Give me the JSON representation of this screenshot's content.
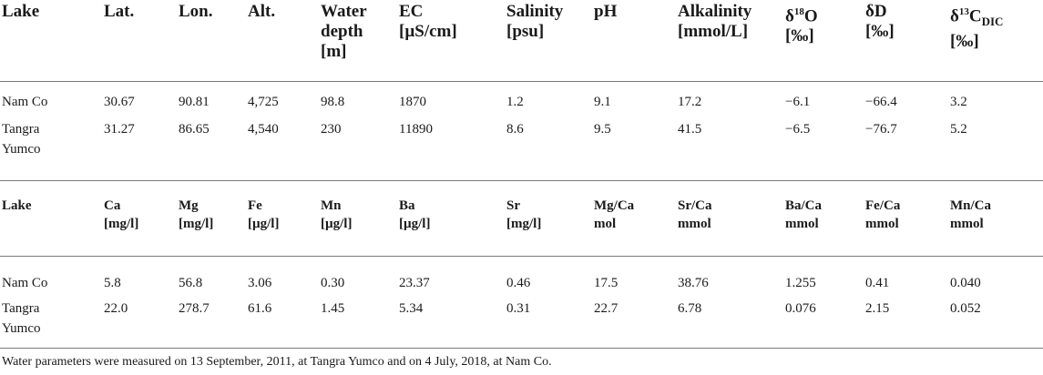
{
  "table1": {
    "header": [
      [
        "Lake"
      ],
      [
        "Lat."
      ],
      [
        "Lon."
      ],
      [
        "Alt."
      ],
      [
        "Water",
        "depth",
        "[m]"
      ],
      [
        "EC",
        "[µS/cm]"
      ],
      [
        "Salinity",
        "[psu]"
      ],
      [
        "pH"
      ],
      [
        "Alkalinity",
        "[mmol/L]"
      ],
      [
        "δ",
        "18",
        "O",
        "[‰]"
      ],
      [
        "δD",
        "[‰]"
      ],
      [
        "δ",
        "13",
        "C",
        "DIC",
        "[‰]"
      ]
    ],
    "rows": [
      [
        [
          "Nam Co"
        ],
        "30.67",
        "90.81",
        "4,725",
        "98.8",
        "1870",
        "1.2",
        "9.1",
        "17.2",
        "−6.1",
        "−66.4",
        "3.2"
      ],
      [
        [
          "Tangra",
          "Yumco"
        ],
        "31.27",
        "86.65",
        "4,540",
        "230",
        "11890",
        "8.6",
        "9.5",
        "41.5",
        "−6.5",
        "−76.7",
        "5.2"
      ]
    ]
  },
  "table2": {
    "header": [
      [
        "Lake"
      ],
      [
        "Ca",
        "[mg/l]"
      ],
      [
        "Mg",
        "[mg/l]"
      ],
      [
        "Fe",
        "[µg/l]"
      ],
      [
        "Mn",
        "[µg/l]"
      ],
      [
        "Ba",
        "[µg/l]"
      ],
      [
        "Sr",
        "[mg/l]"
      ],
      [
        "Mg/Ca",
        "mol"
      ],
      [
        "Sr/Ca",
        "mmol"
      ],
      [
        "Ba/Ca",
        "mmol"
      ],
      [
        "Fe/Ca",
        "mmol"
      ],
      [
        "Mn/Ca",
        "mmol"
      ]
    ],
    "rows": [
      [
        [
          "Nam Co"
        ],
        "5.8",
        "56.8",
        "3.06",
        "0.30",
        "23.37",
        "0.46",
        "17.5",
        "38.76",
        "1.255",
        "0.41",
        "0.040"
      ],
      [
        [
          "Tangra",
          "Yumco"
        ],
        "22.0",
        "278.7",
        "61.6",
        "1.45",
        "5.34",
        "0.31",
        "22.7",
        "6.78",
        "0.076",
        "2.15",
        "0.052"
      ]
    ]
  },
  "footnote": "Water parameters were measured on 13 September, 2011, at Tangra Yumco and on 4 July, 2018, at Nam Co."
}
